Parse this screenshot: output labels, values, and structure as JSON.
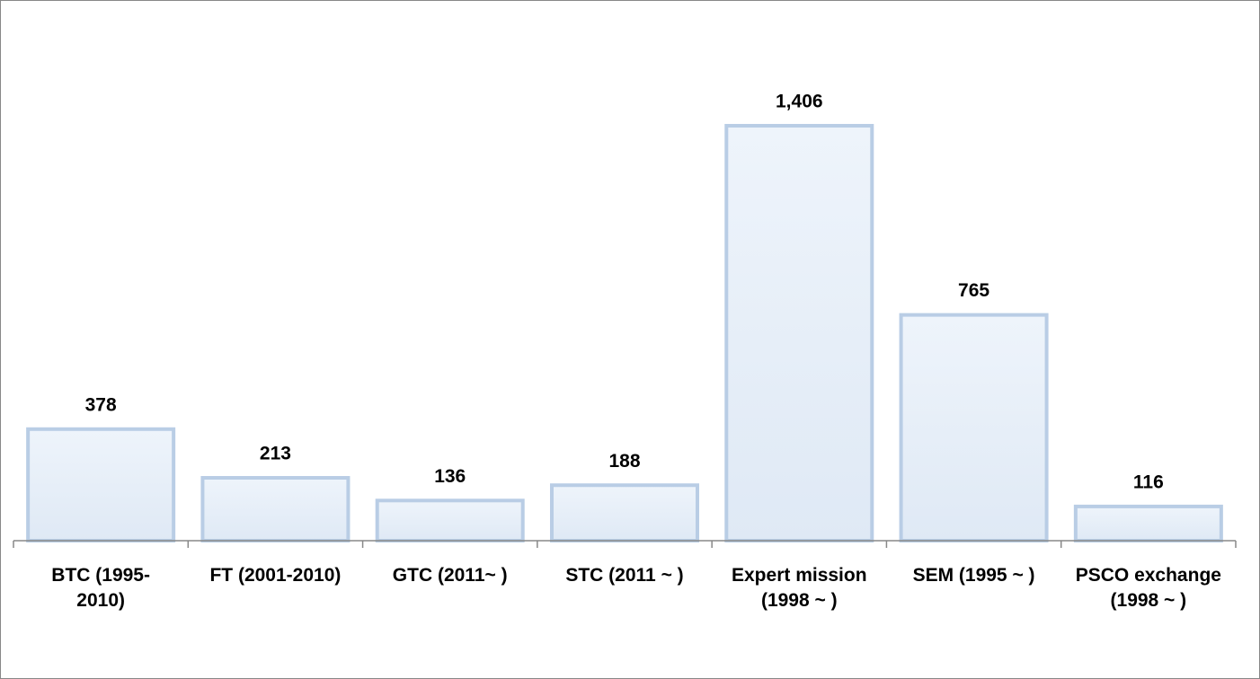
{
  "chart_data": {
    "type": "bar",
    "categories": [
      "BTC (1995-\n2010)",
      "FT (2001-2010)",
      "GTC (2011~ )",
      "STC (2011 ~ )",
      "Expert mission\n(1998 ~ )",
      "SEM (1995 ~ )",
      "PSCO exchange\n(1998 ~ )"
    ],
    "values": [
      378,
      213,
      136,
      188,
      1406,
      765,
      116
    ],
    "value_labels": [
      "378",
      "213",
      "136",
      "188",
      "1,406",
      "765",
      "116"
    ],
    "color": "#b9cde5"
  }
}
